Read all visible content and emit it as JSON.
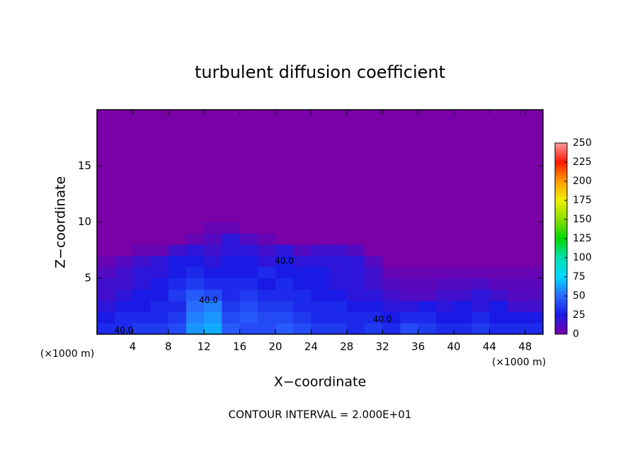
{
  "chart_data": {
    "type": "heatmap",
    "title": "turbulent diffusion coefficient",
    "xlabel": "X−coordinate",
    "ylabel": "Z−coordinate",
    "xunit": "(×1000 m)",
    "yunit": "(×1000 m)",
    "footer": "CONTOUR INTERVAL = 2.000E+01",
    "xlim": [
      0,
      50
    ],
    "ylim": [
      0,
      20
    ],
    "xticks": [
      4,
      8,
      12,
      16,
      20,
      24,
      28,
      32,
      36,
      40,
      44,
      48
    ],
    "yticks": [
      5,
      10,
      15
    ],
    "xbins": [
      0,
      2,
      4,
      6,
      8,
      10,
      12,
      14,
      16,
      18,
      20,
      22,
      24,
      26,
      28,
      30,
      32,
      34,
      36,
      38,
      40,
      42,
      44,
      46,
      48,
      50
    ],
    "ybins": [
      0,
      1,
      2,
      3,
      4,
      5,
      6,
      7,
      8,
      9,
      10,
      20
    ],
    "values": [
      [
        30,
        30,
        35,
        35,
        40,
        60,
        65,
        45,
        40,
        40,
        45,
        40,
        35,
        35,
        30,
        35,
        30,
        40,
        35,
        30,
        30,
        35,
        30,
        30,
        30
      ],
      [
        25,
        30,
        30,
        30,
        35,
        55,
        60,
        40,
        45,
        40,
        40,
        35,
        30,
        30,
        30,
        30,
        25,
        30,
        30,
        25,
        25,
        30,
        25,
        25,
        25
      ],
      [
        20,
        25,
        25,
        30,
        30,
        50,
        55,
        35,
        40,
        35,
        35,
        30,
        30,
        30,
        25,
        25,
        20,
        20,
        25,
        20,
        25,
        20,
        25,
        15,
        15
      ],
      [
        15,
        20,
        25,
        25,
        35,
        45,
        40,
        30,
        35,
        30,
        30,
        30,
        25,
        25,
        20,
        20,
        15,
        10,
        10,
        15,
        15,
        20,
        15,
        10,
        10
      ],
      [
        15,
        15,
        20,
        25,
        30,
        35,
        30,
        30,
        30,
        25,
        30,
        25,
        25,
        20,
        20,
        15,
        10,
        8,
        8,
        10,
        10,
        12,
        8,
        8,
        8
      ],
      [
        10,
        15,
        20,
        20,
        25,
        30,
        25,
        25,
        25,
        30,
        25,
        25,
        25,
        20,
        20,
        15,
        5,
        5,
        5,
        5,
        5,
        5,
        5,
        5,
        5
      ],
      [
        5,
        10,
        15,
        20,
        25,
        25,
        20,
        25,
        25,
        20,
        25,
        20,
        20,
        20,
        20,
        10,
        0,
        0,
        0,
        0,
        0,
        0,
        0,
        0,
        0
      ],
      [
        0,
        0,
        5,
        5,
        15,
        20,
        15,
        20,
        20,
        15,
        20,
        10,
        15,
        15,
        10,
        0,
        0,
        0,
        0,
        0,
        0,
        0,
        0,
        0,
        0
      ],
      [
        0,
        0,
        0,
        0,
        0,
        5,
        10,
        20,
        10,
        5,
        0,
        0,
        0,
        0,
        0,
        0,
        0,
        0,
        0,
        0,
        0,
        0,
        0,
        0,
        0
      ],
      [
        0,
        0,
        0,
        0,
        0,
        0,
        5,
        5,
        0,
        0,
        0,
        0,
        0,
        0,
        0,
        0,
        0,
        0,
        0,
        0,
        0,
        0,
        0,
        0,
        0
      ],
      [
        0,
        0,
        0,
        0,
        0,
        0,
        0,
        0,
        0,
        0,
        0,
        0,
        0,
        0,
        0,
        0,
        0,
        0,
        0,
        0,
        0,
        0,
        0,
        0,
        0
      ]
    ],
    "contour_labels": [
      {
        "text": "40.0",
        "x": 12.5,
        "y": 3
      },
      {
        "text": "40.0",
        "x": 32,
        "y": 1.3
      },
      {
        "text": "40.0",
        "x": 21,
        "y": 6.5
      },
      {
        "text": "40.0",
        "x": 3,
        "y": 0.3
      }
    ],
    "clim": [
      0,
      250
    ],
    "cticks": [
      0,
      25,
      50,
      75,
      100,
      125,
      150,
      175,
      200,
      225,
      250
    ],
    "colormap": [
      "#7a00a8",
      "#1a1ae6",
      "#2a6aff",
      "#00d8ff",
      "#00e0b0",
      "#00d800",
      "#8ae000",
      "#f0f000",
      "#ff9a00",
      "#ff1a00",
      "#ff9aa0"
    ]
  }
}
